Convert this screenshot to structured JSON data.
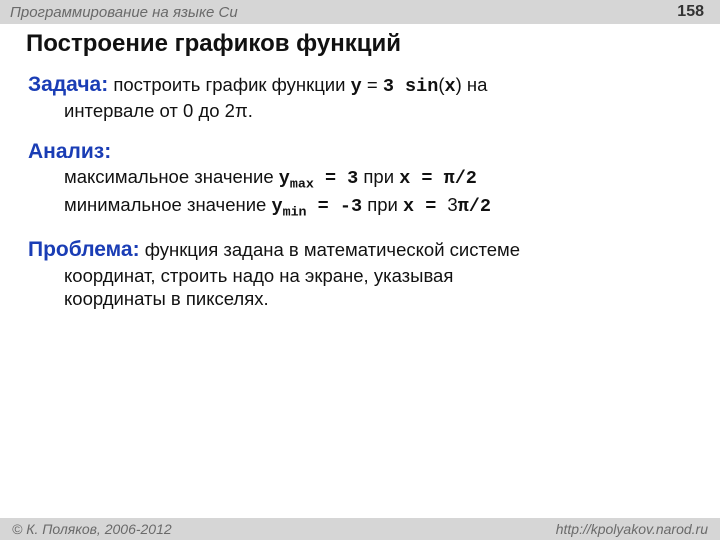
{
  "header": {
    "course": "Программирование на языке Си",
    "page": "158"
  },
  "title": "Построение графиков функций",
  "sections": {
    "task": {
      "label": "Задача:",
      "before_code": " построить график функции ",
      "code_y": "y",
      "eq1": " = ",
      "code_3sin": "3 sin",
      "paren_open": "(",
      "code_x": "x",
      "paren_close": ")",
      "after_code": " на",
      "line2": "интервале от 0 до 2π."
    },
    "analysis": {
      "label": "Анализ:",
      "max_line": {
        "text": "максимальное значение  ",
        "y": "y",
        "sub": "max",
        "eq": " = 3",
        "at": "   при  ",
        "x": "x",
        "xeq": " = π/2"
      },
      "min_line": {
        "text": "минимальное значение   ",
        "y": "y",
        "sub": "min",
        "eq": " = -3",
        "at": "  при  ",
        "x": "x",
        "xeq_prefix": " = ",
        "three": "3",
        "pi_over_2": "π/2"
      }
    },
    "problem": {
      "label": "Проблема:",
      "rest": " функция задана в математической системе",
      "line2": "координат, строить надо на экране, указывая",
      "line3": "координаты в пикселях."
    }
  },
  "footer": {
    "copyright": "© К. Поляков, 2006-2012",
    "url": "http://kpolyakov.narod.ru"
  },
  "colors": {
    "header_bg": "#d6d6d6",
    "header_text": "#6a6a6a",
    "label": "#1a3db5",
    "body_text": "#111111",
    "bg": "#ffffff"
  }
}
